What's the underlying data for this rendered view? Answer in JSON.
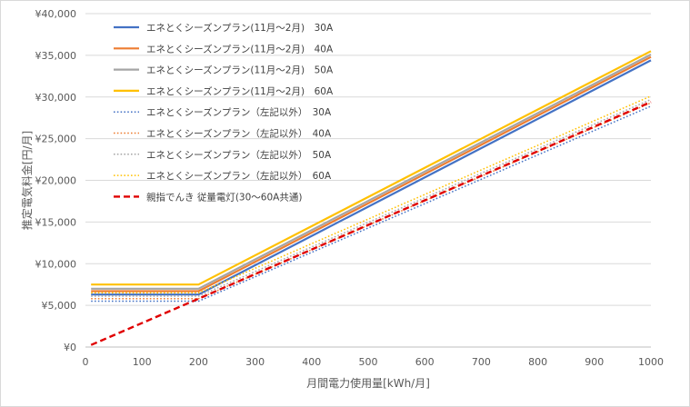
{
  "chart_data": {
    "type": "line",
    "title": "",
    "xlabel": "月間電力使用量[kWh/月]",
    "ylabel": "推定電気料金[円/月]",
    "xlim": [
      0,
      1000
    ],
    "ylim": [
      0,
      40000
    ],
    "x_ticks": [
      "0",
      "100",
      "200",
      "300",
      "400",
      "500",
      "600",
      "700",
      "800",
      "900",
      "1000"
    ],
    "y_ticks": [
      "¥0",
      "¥5,000",
      "¥10,000",
      "¥15,000",
      "¥20,000",
      "¥25,000",
      "¥30,000",
      "¥35,000",
      "¥40,000"
    ],
    "grid": "horizontal",
    "legend_position": "top-left",
    "series": [
      {
        "name": "エネとくシーズンプラン(11月～2月)　30A",
        "color": "#4472c4",
        "dash": "solid",
        "x": [
          10,
          200,
          1000
        ],
        "y": [
          6300,
          6300,
          34400
        ]
      },
      {
        "name": "エネとくシーズンプラン(11月～2月)　40A",
        "color": "#ed7d31",
        "dash": "solid",
        "x": [
          10,
          200,
          1000
        ],
        "y": [
          6700,
          6700,
          34800
        ]
      },
      {
        "name": "エネとくシーズンプラン(11月～2月)　50A",
        "color": "#a5a5a5",
        "dash": "solid",
        "x": [
          10,
          200,
          1000
        ],
        "y": [
          7000,
          7000,
          35100
        ]
      },
      {
        "name": "エネとくシーズンプラン(11月～2月)　60A",
        "color": "#ffc000",
        "dash": "solid",
        "x": [
          10,
          200,
          1000
        ],
        "y": [
          7500,
          7500,
          35500
        ]
      },
      {
        "name": "エネとくシーズンプラン（左記以外）　30A",
        "color": "#4472c4",
        "dash": "dotted",
        "x": [
          10,
          200,
          1000
        ],
        "y": [
          5500,
          5500,
          28900
        ]
      },
      {
        "name": "エネとくシーズンプラン（左記以外）　40A",
        "color": "#ed7d31",
        "dash": "dotted",
        "x": [
          10,
          200,
          1000
        ],
        "y": [
          5800,
          5800,
          29300
        ]
      },
      {
        "name": "エネとくシーズンプラン（左記以外）　50A",
        "color": "#a5a5a5",
        "dash": "dotted",
        "x": [
          10,
          200,
          1000
        ],
        "y": [
          6100,
          6100,
          29700
        ]
      },
      {
        "name": "エネとくシーズンプラン（左記以外）　60A",
        "color": "#ffc000",
        "dash": "dotted",
        "x": [
          10,
          200,
          1000
        ],
        "y": [
          6500,
          6500,
          30100
        ]
      },
      {
        "name": "親指でんき 従量電灯(30～60A共通)",
        "color": "#e00000",
        "dash": "dashed",
        "x": [
          10,
          200,
          1000
        ],
        "y": [
          250,
          5800,
          29400
        ]
      }
    ]
  }
}
